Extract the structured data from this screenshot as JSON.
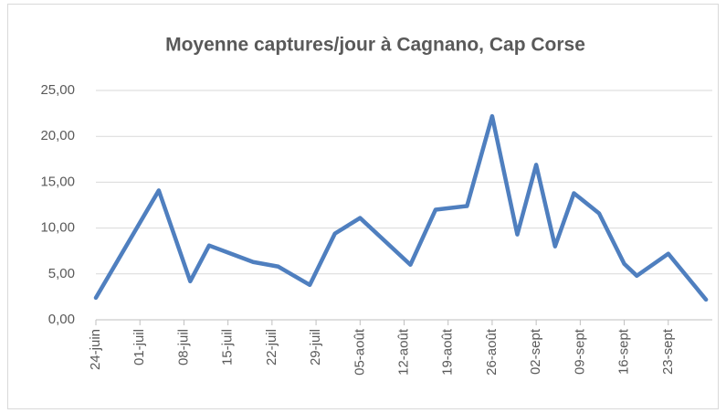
{
  "chart_data": {
    "type": "line",
    "title": "Moyenne captures/jour à Cagnano, Cap Corse",
    "x": [
      "24-juin",
      "04-juil",
      "09-juil",
      "12-juil",
      "19-juil",
      "23-juil",
      "28-juil",
      "01-août",
      "05-août",
      "13-août",
      "17-août",
      "22-août",
      "26-août",
      "30-août",
      "02-sept",
      "05-sept",
      "08-sept",
      "12-sept",
      "16-sept",
      "18-sept",
      "23-sept",
      "29-sept"
    ],
    "series": [
      {
        "name": "Moyenne captures/jour",
        "color": "#4f7fbf",
        "values": [
          2.4,
          14.1,
          4.2,
          8.1,
          6.3,
          5.8,
          3.8,
          9.4,
          11.1,
          6.0,
          12.0,
          12.4,
          22.2,
          9.3,
          16.9,
          8.0,
          13.8,
          11.6,
          6.1,
          4.8,
          7.2,
          2.2
        ]
      }
    ],
    "xlim": [
      "24-juin",
      "30-sept"
    ],
    "xticks": [
      "24-juin",
      "01-juil",
      "08-juil",
      "15-juil",
      "22-juil",
      "29-juil",
      "05-août",
      "12-août",
      "19-août",
      "26-août",
      "02-sept",
      "09-sept",
      "16-sept",
      "23-sept"
    ],
    "ylim": [
      0,
      25
    ],
    "yticks": [
      {
        "value": 0,
        "label": "0,00"
      },
      {
        "value": 5,
        "label": "5,00"
      },
      {
        "value": 10,
        "label": "10,00"
      },
      {
        "value": 15,
        "label": "15,00"
      },
      {
        "value": 20,
        "label": "20,00"
      },
      {
        "value": 25,
        "label": "25,00"
      }
    ],
    "grid": true
  }
}
